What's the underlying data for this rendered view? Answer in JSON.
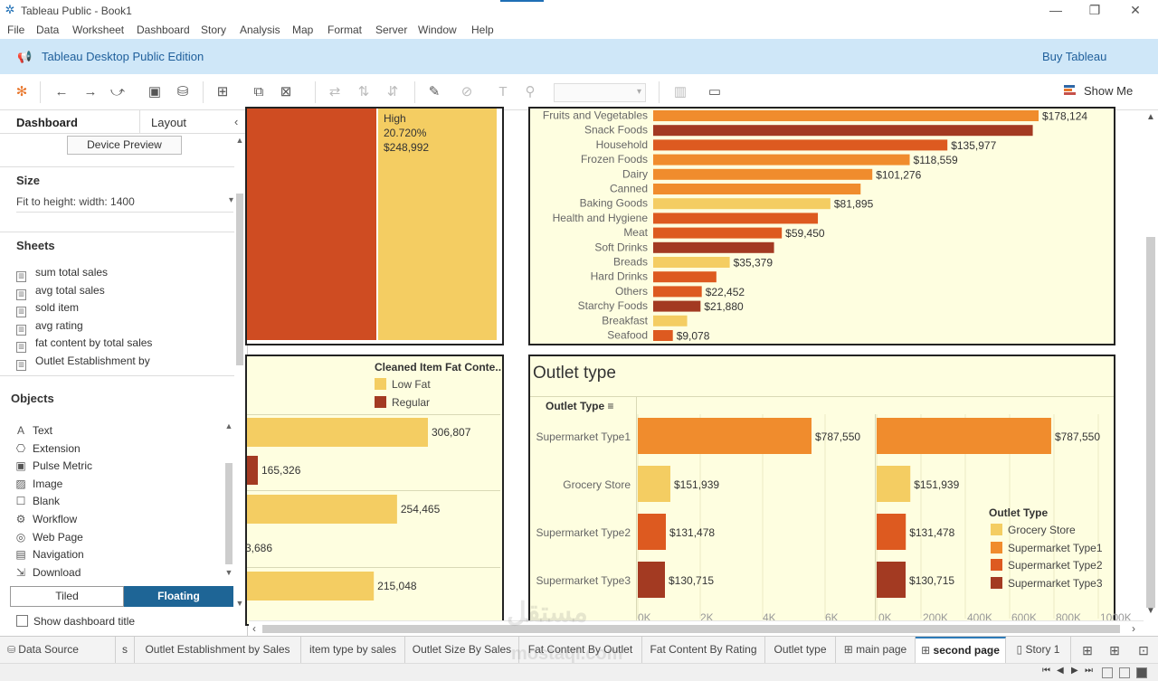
{
  "window": {
    "title": "Tableau Public - Book1",
    "controls": [
      "—",
      "❐",
      "✕"
    ]
  },
  "menu": [
    "File",
    "Data",
    "Worksheet",
    "Dashboard",
    "Story",
    "Analysis",
    "Map",
    "Format",
    "Server",
    "Window",
    "Help"
  ],
  "banner": {
    "edition": "Tableau Desktop Public Edition",
    "buy": "Buy Tableau"
  },
  "toolbar": {
    "show_me": "Show Me"
  },
  "left_panel": {
    "tabs": {
      "dashboard": "Dashboard",
      "layout": "Layout"
    },
    "device_preview": "Device Preview",
    "size": {
      "title": "Size",
      "value": "Fit to height: width: 1400"
    },
    "sheets": {
      "title": "Sheets",
      "items": [
        "sum  total sales",
        "avg total sales",
        "sold item",
        "avg rating",
        "fat content by total sales",
        "Outlet Establishment by"
      ]
    },
    "objects": {
      "title": "Objects",
      "items": [
        {
          "label": "Text",
          "icon": "text-icon",
          "glyph": "A"
        },
        {
          "label": "Extension",
          "icon": "extension-icon",
          "glyph": "⎔"
        },
        {
          "label": "Pulse Metric",
          "icon": "pulse-metric-icon",
          "glyph": "▣"
        },
        {
          "label": "Image",
          "icon": "image-icon",
          "glyph": "▨"
        },
        {
          "label": "Blank",
          "icon": "blank-icon",
          "glyph": "☐"
        },
        {
          "label": "Workflow",
          "icon": "workflow-icon",
          "glyph": "⚙"
        },
        {
          "label": "Web Page",
          "icon": "web-page-icon",
          "glyph": "◎"
        },
        {
          "label": "Navigation",
          "icon": "navigation-icon",
          "glyph": "▤"
        },
        {
          "label": "Download",
          "icon": "download-icon",
          "glyph": "⇲"
        }
      ]
    },
    "layout_toggle": {
      "tiled": "Tiled",
      "floating": "Floating"
    },
    "show_dashboard_title": "Show dashboard title"
  },
  "colors": {
    "light_yellow": "#f4cd62",
    "orange": "#f08c2d",
    "orange_red": "#dd5a20",
    "dark_red": "#a33a22",
    "treemap_red": "#cf4c22",
    "pane_bg": "#fefee0",
    "floating_blue": "#1e6596"
  },
  "treemap": {
    "label_lines": [
      "High",
      "20.720%",
      "$248,992"
    ]
  },
  "item_type_chart": {
    "chart_data": {
      "type": "bar",
      "categories": [
        "Fruits and Vegetables",
        "Snack Foods",
        "Household",
        "Frozen Foods",
        "Dairy",
        "Canned",
        "Baking Goods",
        "Health and Hygiene",
        "Meat",
        "Soft Drinks",
        "Breads",
        "Hard Drinks",
        "Others",
        "Starchy Foods",
        "Breakfast",
        "Seafood"
      ],
      "values": [
        178124,
        175434,
        135977,
        118559,
        101276,
        95870,
        81895,
        76120,
        59450,
        55850,
        35379,
        29200,
        22452,
        21880,
        15700,
        9078
      ],
      "data_labels": [
        "$178,124",
        "",
        "$135,977",
        "$118,559",
        "$101,276",
        "",
        "$81,895",
        "",
        "$59,450",
        "",
        "$35,379",
        "",
        "$22,452",
        "$21,880",
        "",
        "$9,078"
      ],
      "colors": [
        "orange",
        "dark_red",
        "orange_red",
        "orange",
        "orange",
        "orange",
        "light_yellow",
        "orange_red",
        "orange_red",
        "dark_red",
        "light_yellow",
        "orange_red",
        "orange_red",
        "dark_red",
        "light_yellow",
        "orange_red"
      ]
    }
  },
  "fat_content_chart": {
    "legend_title": "Cleaned Item Fat Conte..",
    "legend": [
      {
        "label": "Low Fat",
        "color": "#f4cd62"
      },
      {
        "label": "Regular",
        "color": "#a33a22"
      }
    ],
    "chart_data": {
      "type": "bar",
      "bars": [
        {
          "series": "Low Fat",
          "value": 306807,
          "label": "306,807"
        },
        {
          "series": "Regular",
          "value": 165326,
          "label": "165,326"
        },
        {
          "series": "Low Fat",
          "value": 254465,
          "label": "254,465"
        },
        {
          "series": "Regular",
          "value": null,
          "label": "3,686"
        },
        {
          "series": "Low Fat",
          "value": 215048,
          "label": "215,048"
        }
      ]
    }
  },
  "outlet_type_chart": {
    "title": "Outlet type",
    "row_header": "Outlet Type",
    "legend_title": "Outlet Type",
    "legend": [
      {
        "label": "Grocery Store",
        "color": "#f4cd62"
      },
      {
        "label": "Supermarket Type1",
        "color": "#f08c2d"
      },
      {
        "label": "Supermarket Type2",
        "color": "#dd5a20"
      },
      {
        "label": "Supermarket Type3",
        "color": "#a33a22"
      }
    ],
    "chart_data": {
      "type": "bar",
      "categories": [
        "Supermarket Type1",
        "Grocery Store",
        "Supermarket Type2",
        "Supermarket Type3"
      ],
      "values": [
        787550,
        151939,
        131478,
        130715
      ],
      "data_labels": [
        "$787,550",
        "$151,939",
        "$131,478",
        "$130,715"
      ],
      "colors": [
        "#f08c2d",
        "#f4cd62",
        "#dd5a20",
        "#a33a22"
      ],
      "left_axis_ticks": [
        "0K",
        "2K",
        "4K",
        "6K"
      ],
      "right_axis_ticks": [
        "0K",
        "200K",
        "400K",
        "600K",
        "800K",
        "1000K"
      ],
      "right_axis_range": [
        0,
        1000000
      ]
    }
  },
  "sheet_tabs": {
    "data_source": "Data Source",
    "tabs": [
      {
        "label": "s",
        "active": false
      },
      {
        "label": "Outlet Establishment by Sales",
        "active": false
      },
      {
        "label": "item type by sales",
        "active": false
      },
      {
        "label": "Outlet Size By Sales",
        "active": false
      },
      {
        "label": "Fat Content By Outlet",
        "active": false
      },
      {
        "label": "Fat Content By Rating",
        "active": false
      },
      {
        "label": "Outlet type",
        "active": false
      },
      {
        "label": "main page",
        "active": false,
        "icon": "dashboard-icon"
      },
      {
        "label": "second page",
        "active": true,
        "icon": "dashboard-icon"
      },
      {
        "label": "Story 1",
        "active": false,
        "icon": "story-icon"
      }
    ]
  },
  "watermark": {
    "arabic": "مستقل",
    "latin": "mostaql.com"
  }
}
